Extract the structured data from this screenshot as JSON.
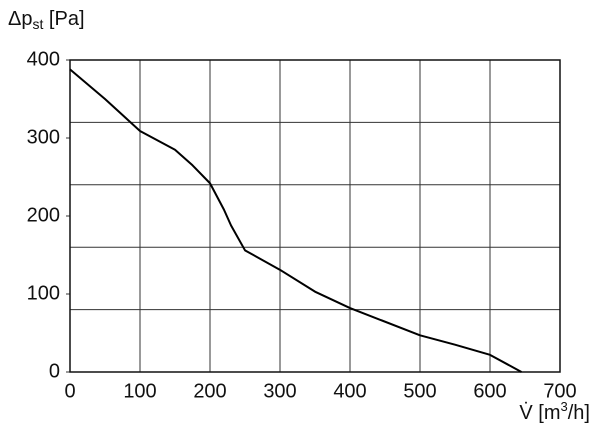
{
  "chart_data": {
    "type": "line",
    "ylabel": [
      "Δp",
      "st",
      " [Pa]"
    ],
    "xlabel": [
      "V̇ [m",
      "3",
      "/h]"
    ],
    "x": [
      0,
      50,
      100,
      150,
      175,
      200,
      220,
      230,
      250,
      300,
      350,
      400,
      500,
      550,
      600,
      645
    ],
    "series": [
      {
        "color": "#000000",
        "values": [
          388,
          350,
          309,
          285,
          265,
          242,
          208,
          188,
          156,
          131,
          103,
          82,
          47,
          35,
          22,
          0
        ]
      }
    ],
    "xlim": [
      0,
      700
    ],
    "ylim": [
      0,
      400
    ],
    "xticks": [
      0,
      100,
      200,
      300,
      400,
      500,
      600,
      700
    ],
    "yticks": [
      0,
      100,
      200,
      300,
      400
    ],
    "ygrid": [
      80,
      160,
      240,
      320
    ],
    "grid": true
  }
}
